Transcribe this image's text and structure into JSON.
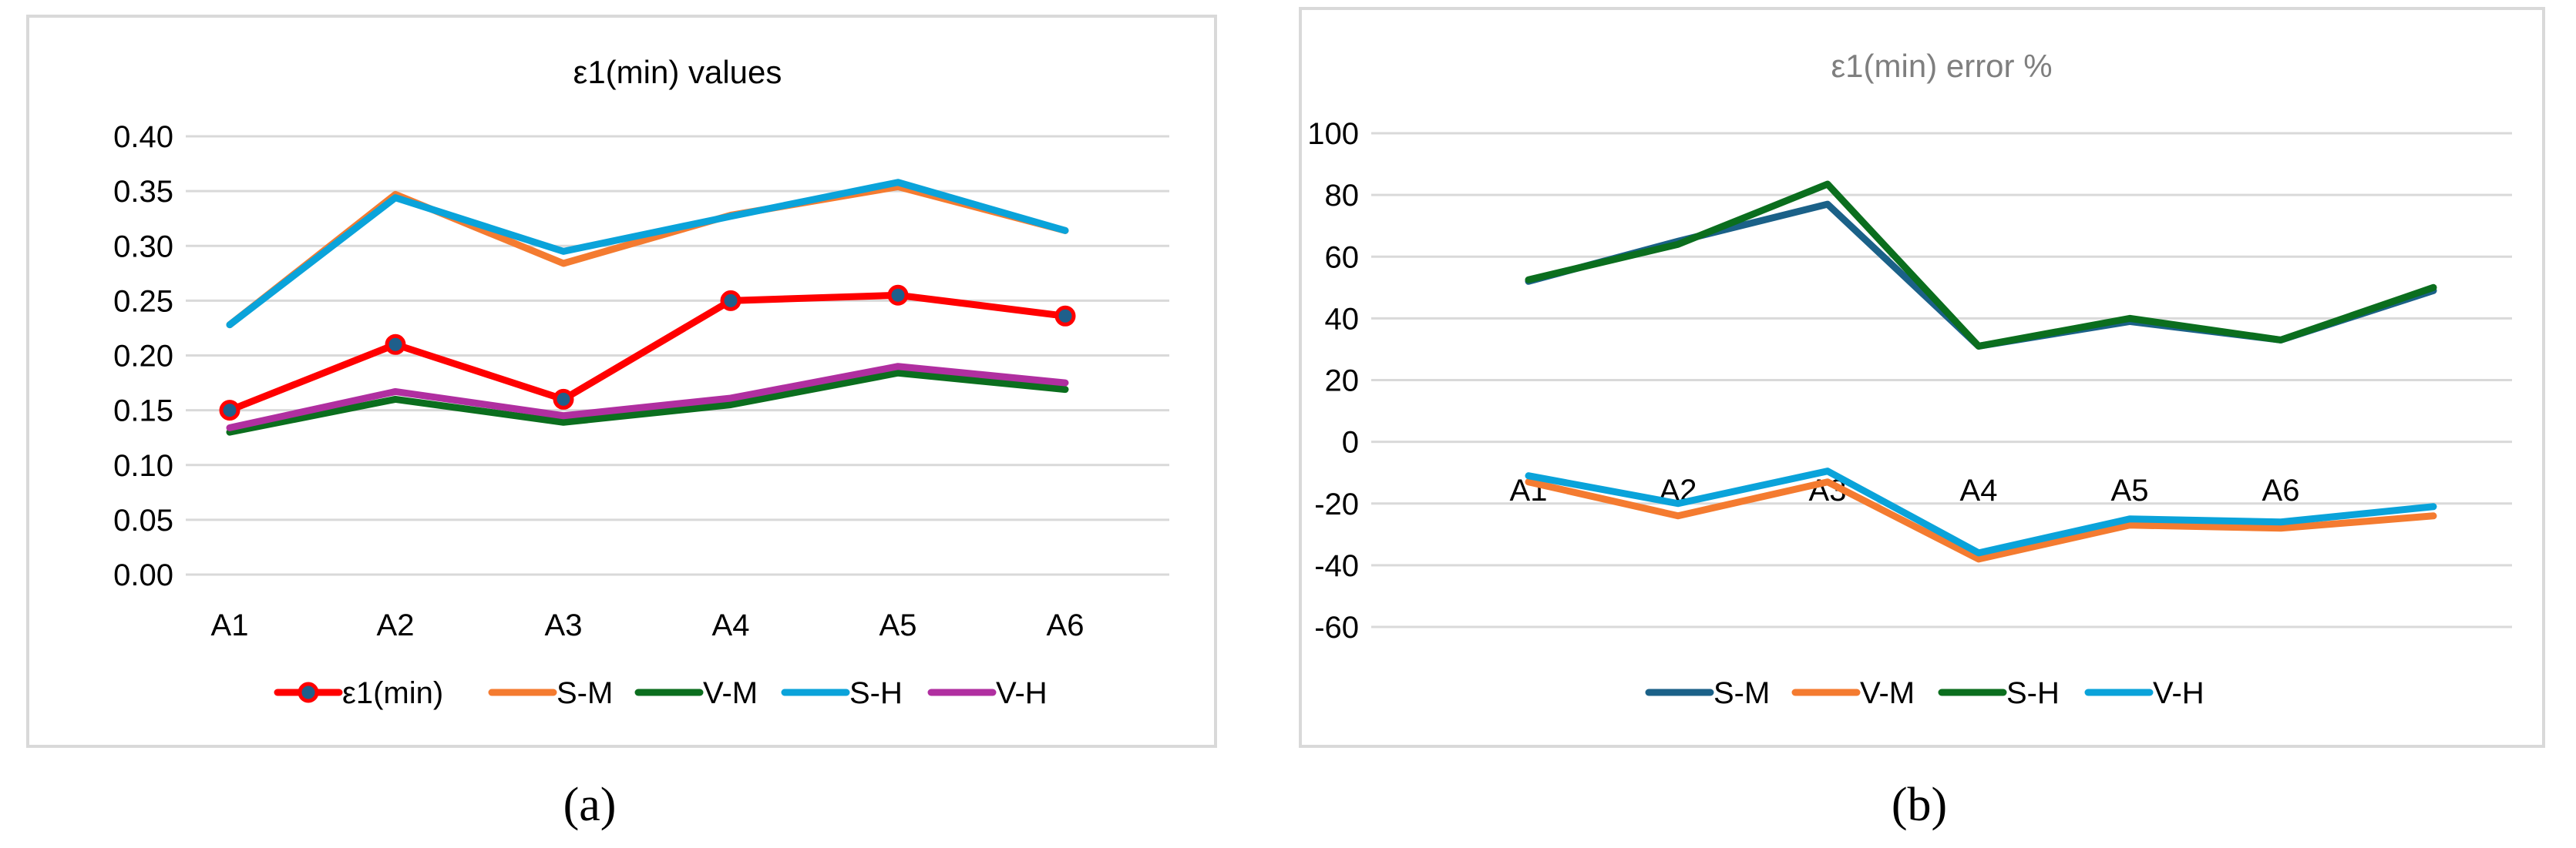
{
  "chart_data": [
    {
      "type": "line",
      "title": "ε1(min) values",
      "caption": "(a)",
      "categories": [
        "A1",
        "A2",
        "A3",
        "A4",
        "A5",
        "A6"
      ],
      "ylim": [
        0,
        0.4
      ],
      "yticks": [
        "0.00",
        "0.05",
        "0.10",
        "0.15",
        "0.20",
        "0.25",
        "0.30",
        "0.35",
        "0.40"
      ],
      "grid": true,
      "legend_position": "bottom",
      "series": [
        {
          "name": "ε1(min)",
          "color": "#FF0000",
          "markers": true,
          "values": [
            0.15,
            0.21,
            0.16,
            0.25,
            0.255,
            0.236
          ]
        },
        {
          "name": "S-M",
          "color": "#F47B30",
          "values": [
            0.228,
            0.347,
            0.284,
            0.328,
            0.354,
            0.314
          ]
        },
        {
          "name": "V-M",
          "color": "#0B6E1E",
          "values": [
            0.13,
            0.16,
            0.139,
            0.155,
            0.184,
            0.169
          ]
        },
        {
          "name": "S-H",
          "color": "#0AA3DA",
          "values": [
            0.228,
            0.344,
            0.295,
            0.327,
            0.358,
            0.314
          ]
        },
        {
          "name": "V-H",
          "color": "#B02FA0",
          "values": [
            0.134,
            0.167,
            0.145,
            0.161,
            0.19,
            0.175
          ]
        }
      ]
    },
    {
      "type": "line",
      "title": "ε1(min) error %",
      "caption": "(b)",
      "categories": [
        "A1",
        "A2",
        "A3",
        "A4",
        "A5",
        "A6",
        ""
      ],
      "ylim": [
        -60,
        100
      ],
      "yticks": [
        "-60",
        "-40",
        "-20",
        "0",
        "20",
        "40",
        "60",
        "80",
        "100"
      ],
      "grid": true,
      "legend_position": "bottom",
      "series": [
        {
          "name": "S-M",
          "color": "#1B6188",
          "values": [
            52,
            65,
            77,
            31,
            39,
            33,
            49
          ]
        },
        {
          "name": "V-M",
          "color": "#F47B30",
          "values": [
            -13,
            -24,
            -13,
            -38,
            -27,
            -28,
            -24
          ]
        },
        {
          "name": "S-H",
          "color": "#0B6E1E",
          "values": [
            52.5,
            64,
            83.5,
            31,
            40,
            33,
            50
          ]
        },
        {
          "name": "V-H",
          "color": "#0AA3DA",
          "values": [
            -11,
            -20,
            -9.5,
            -36,
            -25,
            -26,
            -21
          ]
        }
      ]
    }
  ]
}
